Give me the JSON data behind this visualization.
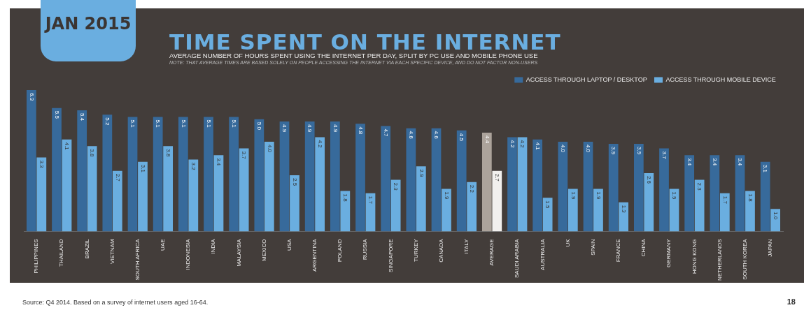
{
  "chart_data": {
    "type": "bar",
    "title": "TIME SPENT ON THE INTERNET",
    "subtitle": "AVERAGE NUMBER OF HOURS SPENT USING THE INTERNET PER DAY, SPLIT BY PC USE AND MOBILE PHONE USE",
    "annotations": [
      "JAN 2015",
      "NOTE: THAT AVERAGE TIMES ARE BASED SOLELY ON PEOPLE ACCESSING THE INTERNET VIA EACH SPECIFIC DEVICE, AND DO NOT FACTOR NON-USERS",
      "Source: Q4 2014. Based on a survey of internet users aged 16-64.",
      "18"
    ],
    "categories": [
      "PHILIPPINES",
      "THAILAND",
      "BRAZIL",
      "VIETNAM",
      "SOUTH AFRICA",
      "UAE",
      "INDONESIA",
      "INDIA",
      "MALAYSIA",
      "MEXICO",
      "USA",
      "ARGENTINA",
      "POLAND",
      "RUSSIA",
      "SINGAPORE",
      "TURKEY",
      "CANADA",
      "ITALY",
      "AVERAGE",
      "SAUDI ARABIA",
      "AUSTRALIA",
      "UK",
      "SPAIN",
      "FRANCE",
      "CHINA",
      "GERMANY",
      "HONG KONG",
      "NETHERLANDS",
      "SOUTH KOREA",
      "JAPAN"
    ],
    "series": [
      {
        "name": "ACCESS THROUGH LAPTOP / DESKTOP",
        "color": "#376a9b",
        "colors": [
          "#376a9b",
          "#376a9b",
          "#376a9b",
          "#376a9b",
          "#376a9b",
          "#376a9b",
          "#376a9b",
          "#376a9b",
          "#376a9b",
          "#376a9b",
          "#376a9b",
          "#376a9b",
          "#376a9b",
          "#376a9b",
          "#376a9b",
          "#376a9b",
          "#376a9b",
          "#376a9b",
          "#aca39b",
          "#376a9b",
          "#376a9b",
          "#376a9b",
          "#376a9b",
          "#376a9b",
          "#376a9b",
          "#376a9b",
          "#376a9b",
          "#376a9b",
          "#376a9b",
          "#376a9b"
        ],
        "values": [
          6.3,
          5.5,
          5.4,
          5.2,
          5.1,
          5.1,
          5.1,
          5.1,
          5.1,
          5.0,
          4.9,
          4.9,
          4.9,
          4.8,
          4.7,
          4.6,
          4.6,
          4.5,
          4.4,
          4.2,
          4.1,
          4.0,
          4.0,
          3.9,
          3.9,
          3.7,
          3.4,
          3.4,
          3.4,
          3.1
        ],
        "value_labels": [
          "6.3",
          "5.5",
          "5.4",
          "5.2",
          "5.1",
          "5.1",
          "5.1",
          "5.1",
          "5.1",
          "5.0",
          "4.9",
          "4.9",
          "4.9",
          "4.8",
          "4.7",
          "4.6",
          "4.6",
          "4.5",
          "4.4",
          "4.2",
          "4.1",
          "4.0",
          "4.0",
          "3.9",
          "3.9",
          "3.7",
          "3.4",
          "3.4",
          "3.4",
          "3.1"
        ]
      },
      {
        "name": "ACCESS THROUGH MOBILE DEVICE",
        "color": "#6aaee0",
        "colors": [
          "#6aaee0",
          "#6aaee0",
          "#6aaee0",
          "#6aaee0",
          "#6aaee0",
          "#6aaee0",
          "#6aaee0",
          "#6aaee0",
          "#6aaee0",
          "#6aaee0",
          "#6aaee0",
          "#6aaee0",
          "#6aaee0",
          "#6aaee0",
          "#6aaee0",
          "#6aaee0",
          "#6aaee0",
          "#6aaee0",
          "#f2f0ee",
          "#6aaee0",
          "#6aaee0",
          "#6aaee0",
          "#6aaee0",
          "#6aaee0",
          "#6aaee0",
          "#6aaee0",
          "#6aaee0",
          "#6aaee0",
          "#6aaee0",
          "#6aaee0"
        ],
        "values": [
          3.3,
          4.1,
          3.8,
          2.7,
          3.1,
          3.8,
          3.2,
          3.4,
          3.7,
          4.0,
          2.5,
          4.2,
          1.8,
          1.7,
          2.3,
          2.9,
          1.9,
          2.2,
          2.7,
          4.2,
          1.5,
          1.9,
          1.9,
          1.3,
          2.6,
          1.9,
          2.3,
          1.7,
          1.8,
          1.0
        ],
        "value_labels": [
          "3.3",
          "4.1",
          "3.8",
          "2.7",
          "3.1",
          "3.8",
          "3.2",
          "3.4",
          "3.7",
          "4.0",
          "2.5",
          "4.2",
          "1.8",
          "1.7",
          "2.3",
          "2.9",
          "1.9",
          "2.2",
          "2.7",
          "4.2",
          "1.5",
          "1.9",
          "1.9",
          "1.3",
          "2.6",
          "1.9",
          "2.3",
          "1.7",
          "1.8",
          "1.0"
        ]
      }
    ],
    "ylim": [
      0,
      6.3
    ],
    "tick_labels": "x",
    "legend": "top right",
    "grid": false
  }
}
